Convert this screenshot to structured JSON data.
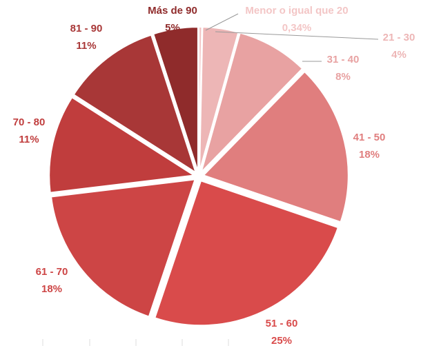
{
  "chart_data": {
    "type": "pie",
    "categories": [
      "Menor o igual que 20",
      "21 - 30",
      "31 - 40",
      "41 - 50",
      "51 - 60",
      "61 - 70",
      "70 - 80",
      "81 - 90",
      "Más de 90"
    ],
    "values": [
      0.34,
      4,
      8,
      18,
      25,
      18,
      11,
      11,
      5
    ],
    "value_labels": [
      "0,34%",
      "4%",
      "8%",
      "18%",
      "25%",
      "18%",
      "11%",
      "11%",
      "5%"
    ],
    "colors": [
      "#f3c6c6",
      "#edb6b6",
      "#e8a2a2",
      "#e07e7e",
      "#d94b4b",
      "#cd4545",
      "#c03d3d",
      "#a83737",
      "#8f2b2b"
    ]
  }
}
